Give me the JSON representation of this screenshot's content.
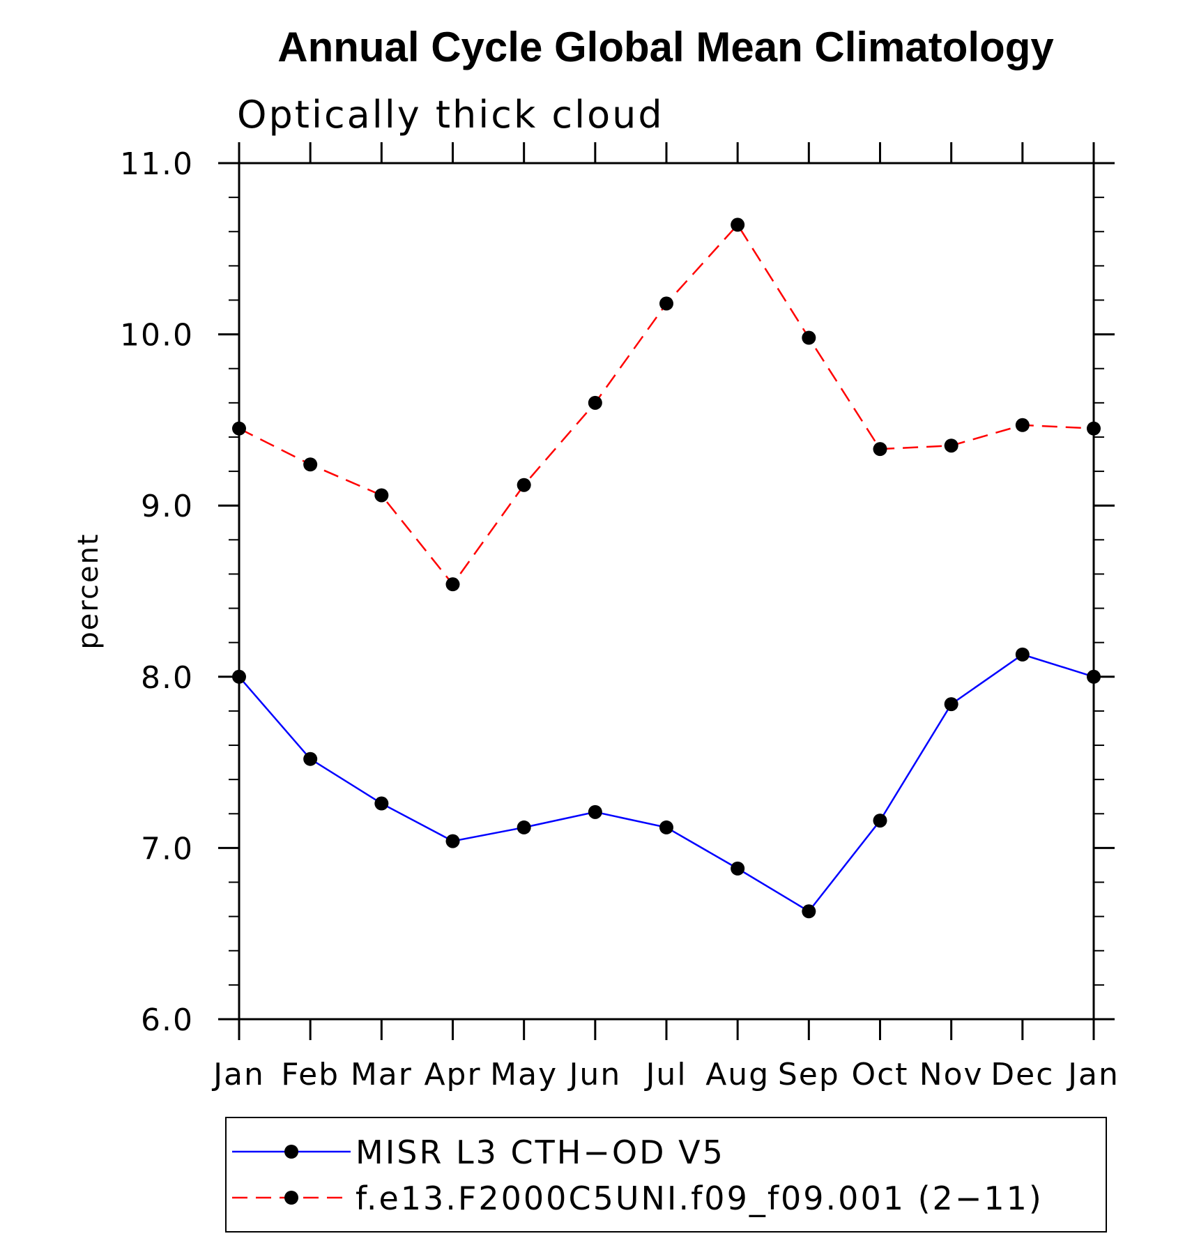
{
  "chart_data": {
    "type": "line",
    "title": "Annual Cycle Global Mean Climatology",
    "subtitle": "Optically thick cloud",
    "ylabel": "percent",
    "xlabel": "",
    "categories": [
      "Jan",
      "Feb",
      "Mar",
      "Apr",
      "May",
      "Jun",
      "Jul",
      "Aug",
      "Sep",
      "Oct",
      "Nov",
      "Dec",
      "Jan"
    ],
    "ylim": [
      6.0,
      11.0
    ],
    "yticks": [
      "6.0",
      "7.0",
      "8.0",
      "9.0",
      "10.0",
      "11.0"
    ],
    "series": [
      {
        "name": "MISR L3 CTH−OD V5",
        "color": "#0000ff",
        "line_style": "solid",
        "marker": "filled-circle",
        "values": [
          8.0,
          7.52,
          7.26,
          7.04,
          7.12,
          7.21,
          7.12,
          6.88,
          6.63,
          7.16,
          7.84,
          8.13,
          8.0
        ]
      },
      {
        "name": "f.e13.F2000C5UNI.f09_f09.001 (2−11)",
        "color": "#ff0000",
        "line_style": "dashed",
        "marker": "filled-circle",
        "values": [
          9.45,
          9.24,
          9.06,
          8.54,
          9.12,
          9.6,
          10.18,
          10.64,
          9.98,
          9.33,
          9.35,
          9.47,
          9.45
        ]
      }
    ],
    "legend_position": "bottom",
    "grid": false
  }
}
